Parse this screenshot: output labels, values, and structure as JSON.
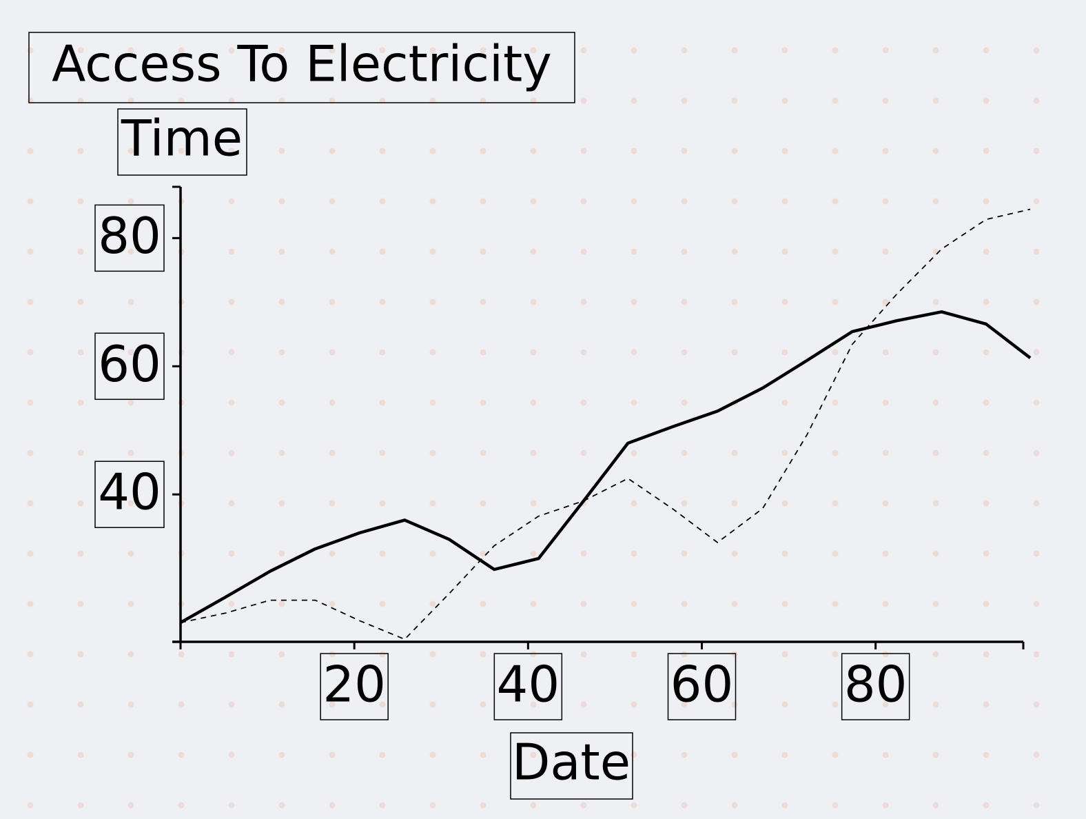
{
  "chart_data": {
    "type": "line",
    "title": "Access To Electricity",
    "xlabel": "Date",
    "ylabel": "Time",
    "xlim": [
      0,
      97
    ],
    "ylim": [
      17,
      88
    ],
    "x_ticks": [
      20,
      40,
      60,
      80
    ],
    "y_ticks": [
      40,
      60,
      80
    ],
    "grid": false,
    "background_pattern": "dots",
    "colors": {
      "background": "#eff0f3",
      "dots": "#ecdcd8",
      "line": "#000000"
    },
    "series": [
      {
        "style": "solid",
        "x": [
          0,
          5.2,
          10.3,
          15.5,
          20.6,
          25.8,
          30.9,
          36.1,
          41.2,
          46.4,
          51.5,
          56.7,
          61.8,
          67,
          72.1,
          77.3,
          82.4,
          87.6,
          92.7,
          97.8
        ],
        "y": [
          20,
          24,
          28,
          31.5,
          34,
          36,
          33,
          28.3,
          30,
          39,
          48,
          50.6,
          53,
          56.6,
          60.9,
          65.4,
          67.1,
          68.5,
          66.6,
          61.3
        ]
      },
      {
        "style": "dashed",
        "x": [
          0,
          5.2,
          10.3,
          15.5,
          20.6,
          25.8,
          30.9,
          36.1,
          41.2,
          46.4,
          51.5,
          56.7,
          61.8,
          67,
          72.1,
          77.3,
          82.4,
          87.6,
          92.7,
          97.8
        ],
        "y": [
          20,
          21.5,
          23.5,
          23.5,
          20.3,
          17.4,
          24.5,
          32,
          36.6,
          39,
          42.5,
          37.7,
          32.5,
          37.8,
          49.3,
          63.4,
          71.2,
          78.3,
          82.9,
          84.5
        ]
      }
    ]
  }
}
